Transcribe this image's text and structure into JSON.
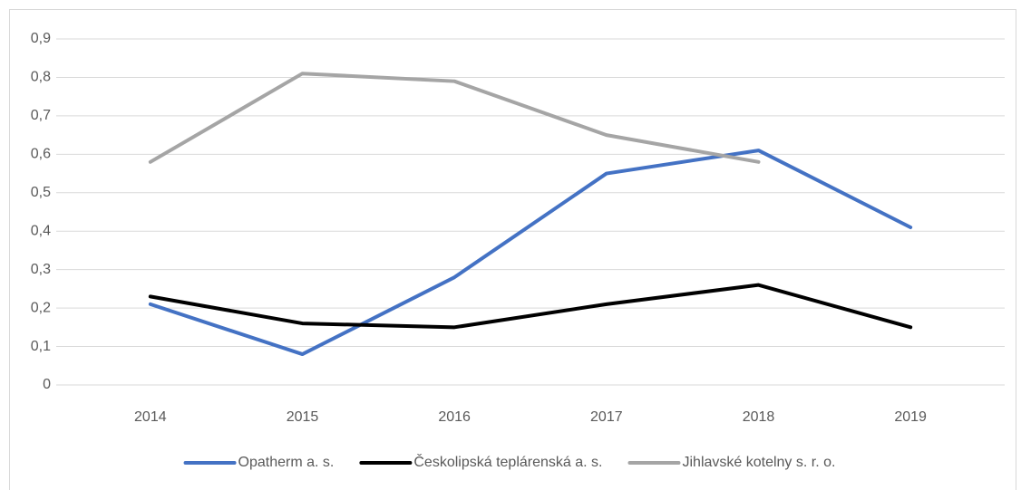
{
  "chart_data": {
    "type": "line",
    "categories": [
      "2014",
      "2015",
      "2016",
      "2017",
      "2018",
      "2019"
    ],
    "series": [
      {
        "name": "Opatherm a. s.",
        "color": "#4472c4",
        "values": [
          0.21,
          0.08,
          0.28,
          0.55,
          0.61,
          0.41
        ]
      },
      {
        "name": "Českolipská teplárenská a. s.",
        "color": "#000000",
        "values": [
          0.23,
          0.16,
          0.15,
          0.21,
          0.26,
          0.15
        ]
      },
      {
        "name": "Jihlavské kotelny s. r. o.",
        "color": "#a5a5a5",
        "values": [
          0.58,
          0.81,
          0.79,
          0.65,
          0.58,
          null
        ]
      }
    ],
    "ylim": [
      0,
      0.9
    ],
    "yticks": [
      0,
      {
        "value": 0.1,
        "label": "0,1"
      },
      {
        "value": 0.2,
        "label": "0,2"
      },
      {
        "value": 0.3,
        "label": "0,3"
      },
      {
        "value": 0.4,
        "label": "0,4"
      },
      {
        "value": 0.5,
        "label": "0,5"
      },
      {
        "value": 0.6,
        "label": "0,6"
      },
      {
        "value": 0.7,
        "label": "0,7"
      },
      {
        "value": 0.8,
        "label": "0,8"
      },
      {
        "value": 0.9,
        "label": "0,9"
      }
    ],
    "grid": true,
    "legend": "bottom"
  }
}
